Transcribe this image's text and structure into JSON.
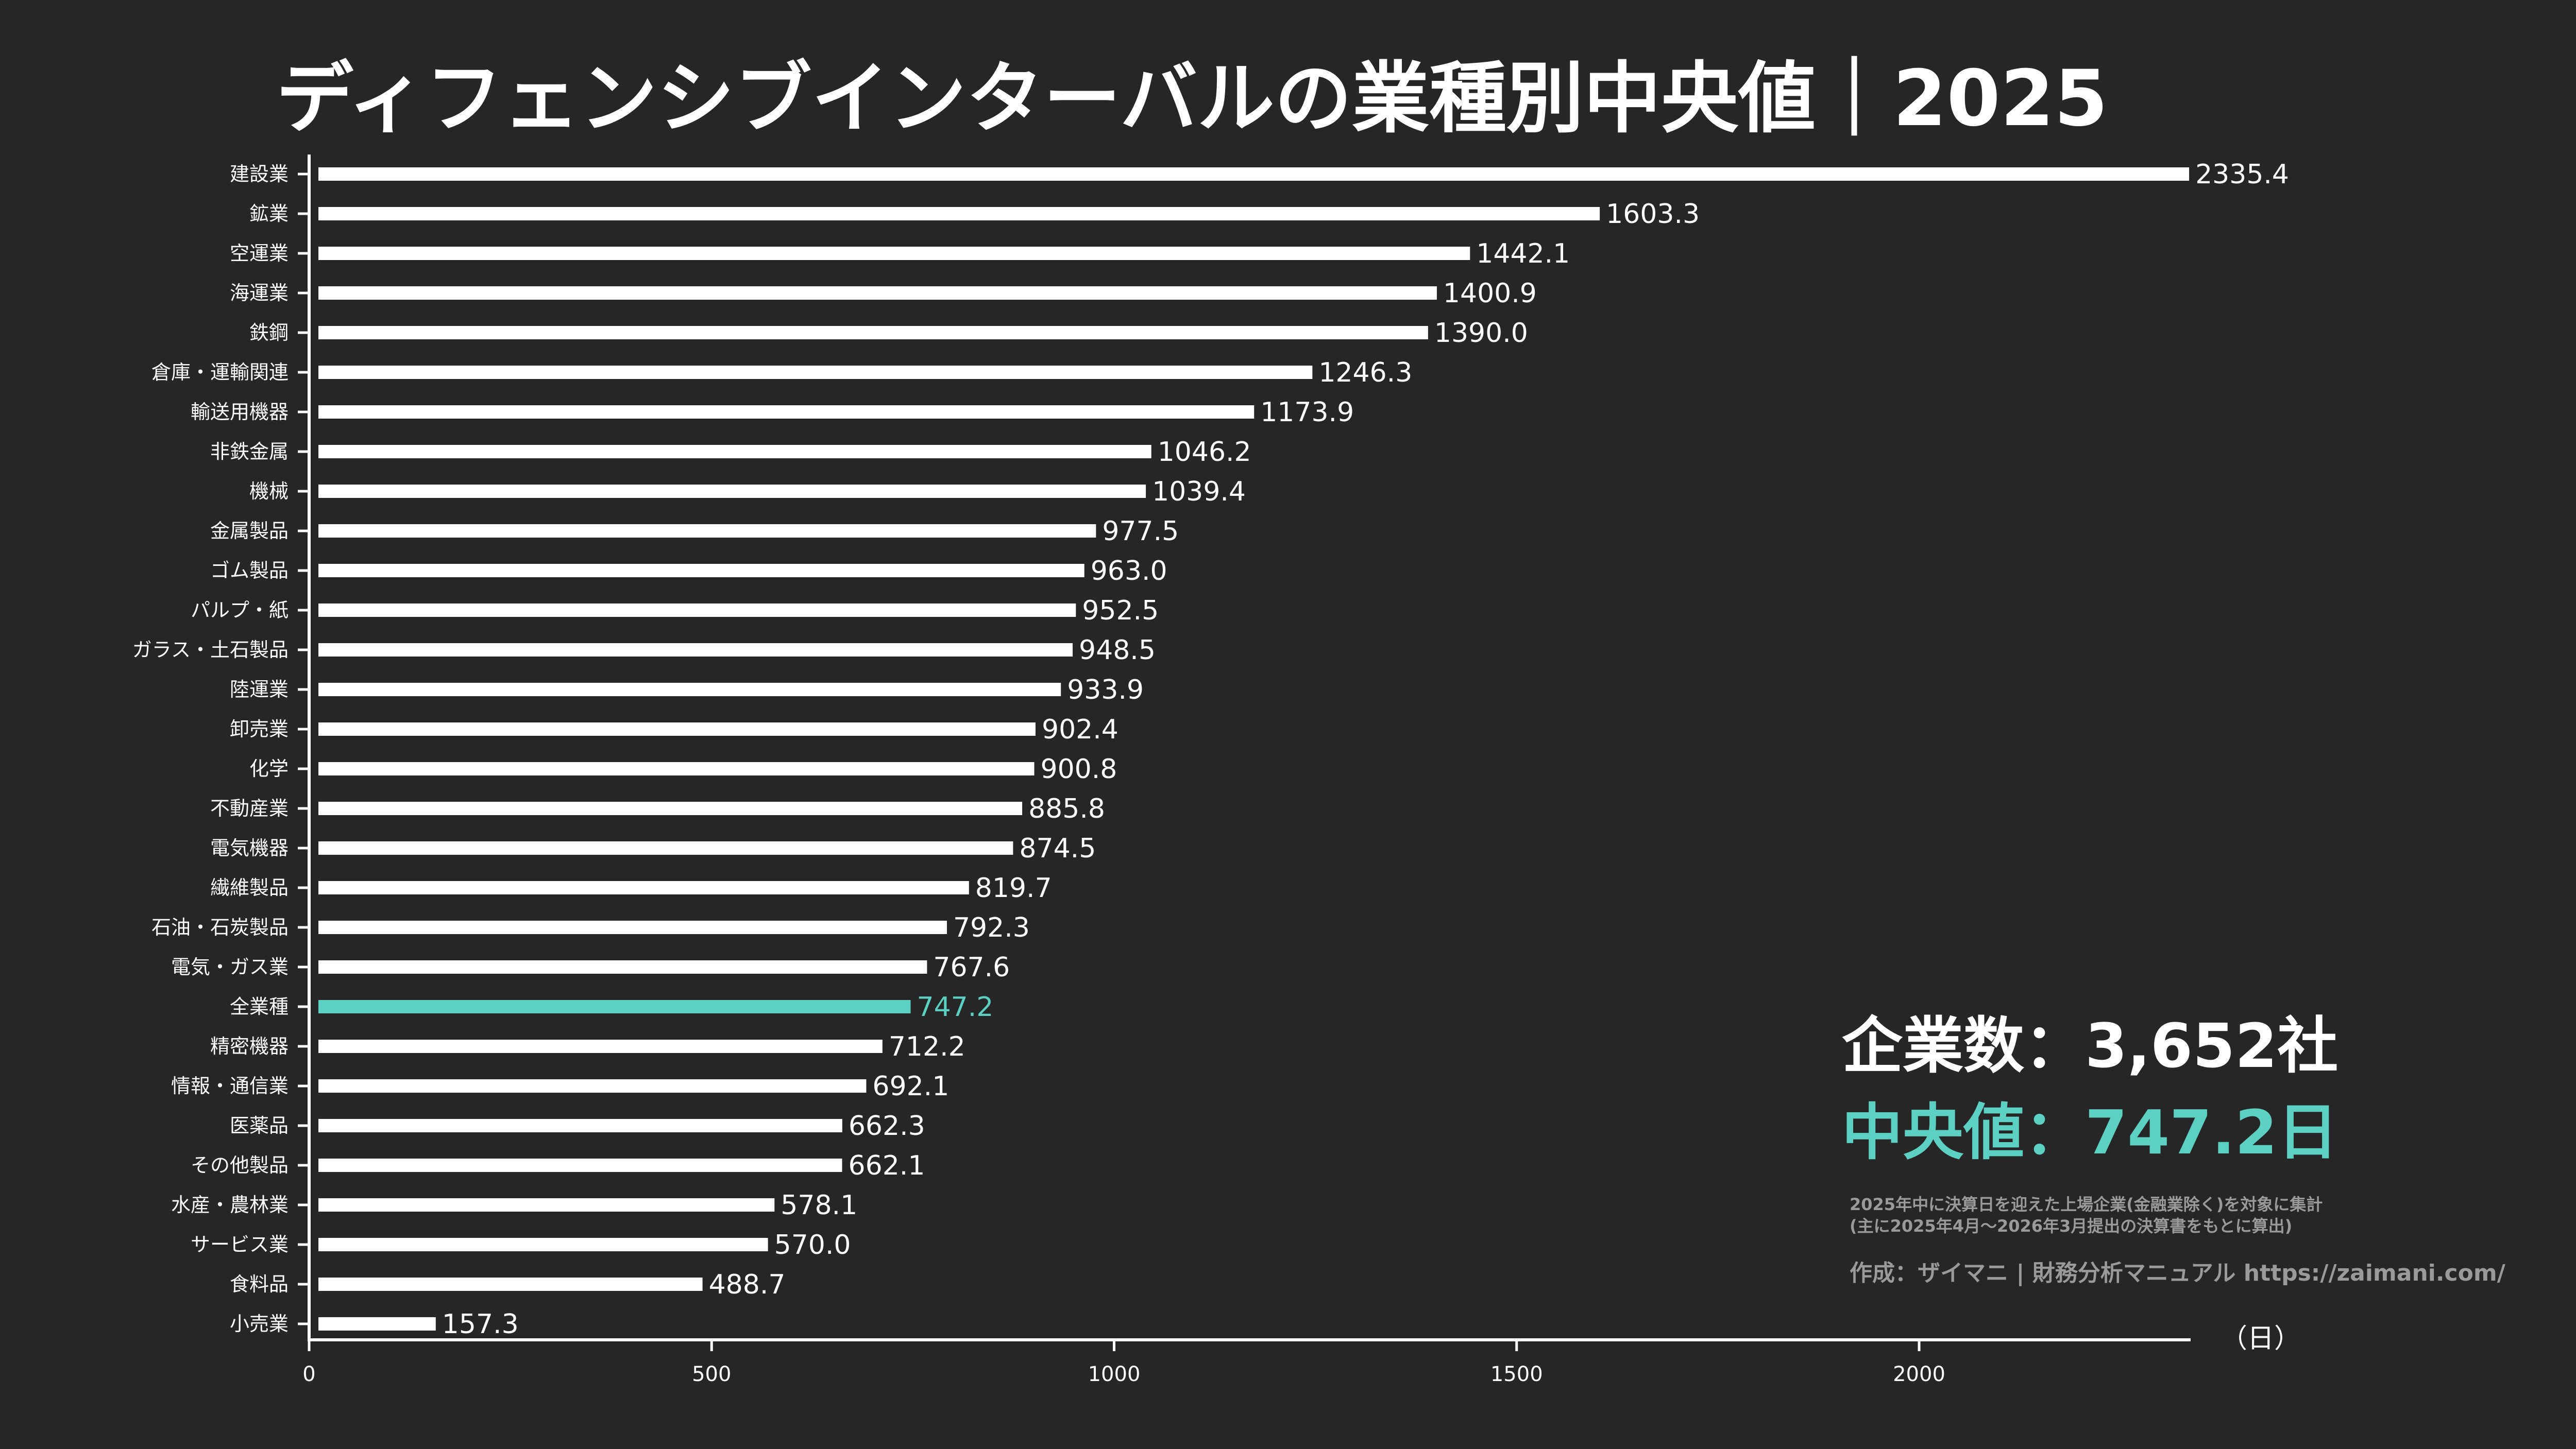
{
  "chart_data": {
    "type": "bar",
    "orientation": "horizontal",
    "title": "ディフェンシブインターバルの業種別中央値｜2025",
    "unit_label": "（日）",
    "xlim": [
      0,
      2335.4
    ],
    "xticks": [
      0,
      500,
      1000,
      1500,
      2000
    ],
    "grid": false,
    "highlight_category": "全業種",
    "categories": [
      "建設業",
      "鉱業",
      "空運業",
      "海運業",
      "鉄鋼",
      "倉庫・運輸関連",
      "輸送用機器",
      "非鉄金属",
      "機械",
      "金属製品",
      "ゴム製品",
      "パルプ・紙",
      "ガラス・土石製品",
      "陸運業",
      "卸売業",
      "化学",
      "不動産業",
      "電気機器",
      "繊維製品",
      "石油・石炭製品",
      "電気・ガス業",
      "全業種",
      "精密機器",
      "情報・通信業",
      "医薬品",
      "その他製品",
      "水産・農林業",
      "サービス業",
      "食料品",
      "小売業"
    ],
    "values": [
      2335.4,
      1603.3,
      1442.1,
      1400.9,
      1390.0,
      1246.3,
      1173.9,
      1046.2,
      1039.4,
      977.5,
      963.0,
      952.5,
      948.5,
      933.9,
      902.4,
      900.8,
      885.8,
      874.5,
      819.7,
      792.3,
      767.6,
      747.2,
      712.2,
      692.1,
      662.3,
      662.1,
      578.1,
      570.0,
      488.7,
      157.3
    ]
  },
  "summary": {
    "companies": "企業数：3,652社",
    "median": "中央値：747.2日",
    "note1": "2025年中に決算日を迎えた上場企業(金融業除く)を対象に集計",
    "note2": "(主に2025年4月～2026年3月提出の決算書をもとに算出)",
    "credit": "作成：ザイマニ | 財務分析マニュアル https://zaimani.com/"
  },
  "colors": {
    "background": "#262626",
    "bar": "#ffffff",
    "highlight": "#5cd0c3",
    "note": "#9a9a9a"
  }
}
